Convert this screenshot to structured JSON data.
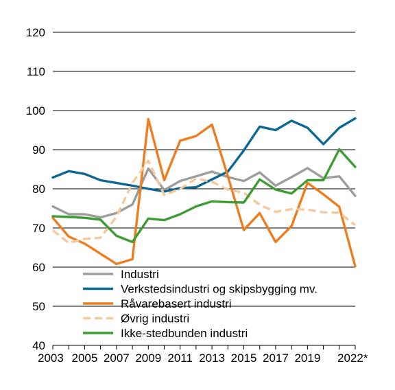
{
  "chart_data": {
    "type": "line",
    "title": "",
    "xlabel": "",
    "ylabel": "",
    "x": [
      "2003",
      "2004",
      "2005",
      "2006",
      "2007",
      "2008",
      "2009",
      "2010",
      "2011",
      "2012",
      "2013",
      "2014",
      "2015",
      "2016",
      "2017",
      "2018",
      "2019",
      "2020",
      "2021",
      "2022*"
    ],
    "x_tick_labels": [
      "2003",
      "2005",
      "2007",
      "2009",
      "2011",
      "2013",
      "2015",
      "2017",
      "2019",
      "2022*"
    ],
    "y_tick_labels": [
      "40",
      "50",
      "60",
      "70",
      "80",
      "90",
      "100",
      "110",
      "120"
    ],
    "ylim": [
      40,
      120
    ],
    "grid": "horizontal",
    "legend_position": "lower-center",
    "series": [
      {
        "name": "Industri",
        "color": "#9d9d9c",
        "dash": "solid",
        "values": [
          75.5,
          73.5,
          73.5,
          72.7,
          73.8,
          76.0,
          85.2,
          79.7,
          82.0,
          83.2,
          84.4,
          83.0,
          82.0,
          84.2,
          80.8,
          83.0,
          85.3,
          82.7,
          83.2,
          78.2
        ]
      },
      {
        "name": "Verkstedsindustri og skipsbygging mv.",
        "color": "#0d6793",
        "dash": "solid",
        "values": [
          82.9,
          84.5,
          83.8,
          82.2,
          81.5,
          80.8,
          80.0,
          79.3,
          80.2,
          80.4,
          82.4,
          84.4,
          89.8,
          95.9,
          95.0,
          97.4,
          95.6,
          91.4,
          95.6,
          98.0
        ]
      },
      {
        "name": "Råvarebasert industri",
        "color": "#ed7d1e",
        "dash": "solid",
        "values": [
          72.6,
          67.8,
          66.0,
          63.4,
          60.8,
          62.0,
          97.8,
          82.2,
          92.3,
          93.5,
          96.4,
          83.2,
          69.5,
          73.8,
          66.4,
          70.5,
          81.5,
          78.6,
          75.4,
          60.2
        ]
      },
      {
        "name": "Øvrig industri",
        "color": "#f6c99d",
        "dash": "dashed",
        "values": [
          69.4,
          66.2,
          67.2,
          67.5,
          72.9,
          81.5,
          87.2,
          78.4,
          80.0,
          82.6,
          81.8,
          79.8,
          79.0,
          75.9,
          74.1,
          74.8,
          74.7,
          74.0,
          73.9,
          70.7
        ]
      },
      {
        "name": "Ikke-stedbunden industri",
        "color": "#3e9c35",
        "dash": "solid",
        "values": [
          73.0,
          72.8,
          72.6,
          72.1,
          68.0,
          66.4,
          72.4,
          72.0,
          73.5,
          75.5,
          76.8,
          76.6,
          76.5,
          82.4,
          79.8,
          78.8,
          82.2,
          82.2,
          90.1,
          85.6
        ]
      }
    ]
  }
}
